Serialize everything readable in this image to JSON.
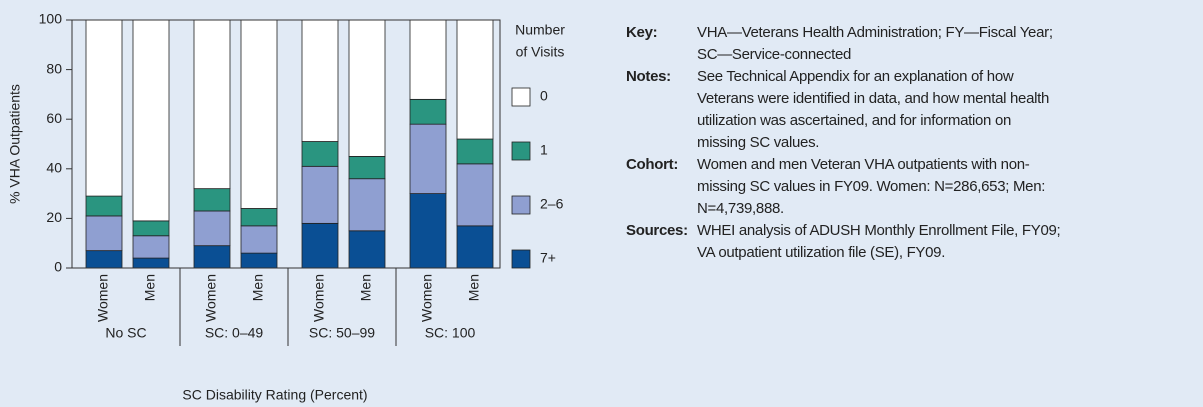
{
  "chart_data": {
    "type": "stacked_bar",
    "y_label": "% VHA Outpatients",
    "x_label": "SC Disability Rating (Percent)",
    "categories": [
      "Women",
      "Men",
      "Women",
      "Men",
      "Women",
      "Men",
      "Women",
      "Men"
    ],
    "groups": [
      "No SC",
      "SC: 0–49",
      "SC: 50–99",
      "SC: 100"
    ],
    "legend_title": [
      "Number",
      "of Visits"
    ],
    "series": [
      {
        "name": "0",
        "color": "#ffffff",
        "values": [
          71,
          81,
          68,
          76,
          49,
          55,
          32,
          48
        ]
      },
      {
        "name": "1",
        "color": "#2a9580",
        "values": [
          8,
          6,
          9,
          7,
          10,
          9,
          10,
          10
        ]
      },
      {
        "name": "2–6",
        "color": "#8f9fd1",
        "values": [
          14,
          9,
          14,
          11,
          23,
          21,
          28,
          25
        ]
      },
      {
        "name": "7+",
        "color": "#0a4f94",
        "values": [
          7,
          4,
          9,
          6,
          18,
          15,
          30,
          17
        ]
      }
    ],
    "ylim": [
      0,
      100
    ],
    "yticks": [
      0,
      20,
      40,
      60,
      80,
      100
    ]
  },
  "notes": [
    {
      "label": "Key:",
      "lines": [
        "VHA—Veterans Health Administration; FY—Fiscal Year;",
        "SC—Service-connected"
      ]
    },
    {
      "label": "Notes:",
      "lines": [
        "See Technical Appendix for an explanation of how",
        "Veterans were identified in data, and how mental health",
        "utilization was ascertained, and for information on",
        "missing SC values."
      ]
    },
    {
      "label": "Cohort:",
      "lines": [
        "Women and men Veteran VHA outpatients with non-",
        "missing SC values in FY09. Women: N=286,653; Men:",
        "N=4,739,888."
      ]
    },
    {
      "label": "Sources:",
      "lines": [
        "WHEI analysis of ADUSH Monthly Enrollment File, FY09;",
        "VA outpatient utilization file (SE), FY09."
      ]
    }
  ]
}
